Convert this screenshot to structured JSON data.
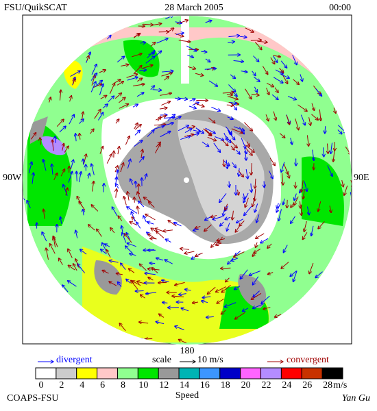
{
  "header": {
    "left": "FSU/QuikSCAT",
    "center": "28 March 2005",
    "right": "00:00"
  },
  "map_labels": {
    "west": "90W",
    "east": "90E",
    "bottom": "180"
  },
  "legend": {
    "divergent": "divergent",
    "scale": "scale",
    "scale_value": "10 m/s",
    "convergent": "convergent"
  },
  "colorbar": {
    "ticks": [
      0,
      2,
      4,
      6,
      8,
      10,
      12,
      14,
      16,
      18,
      20,
      22,
      24,
      26,
      28
    ],
    "unit": "m/s",
    "label": "Speed",
    "colors": [
      "#ffffff",
      "#cccccc",
      "#ffff00",
      "#ffc8c8",
      "#90ff90",
      "#00e600",
      "#999999",
      "#00b4b4",
      "#3c96ff",
      "#0000c8",
      "#ff64ff",
      "#b48cff",
      "#ff0000",
      "#c83200",
      "#000000"
    ]
  },
  "footer": {
    "left": "COAPS-FSU",
    "right": "Yan Gu"
  }
}
